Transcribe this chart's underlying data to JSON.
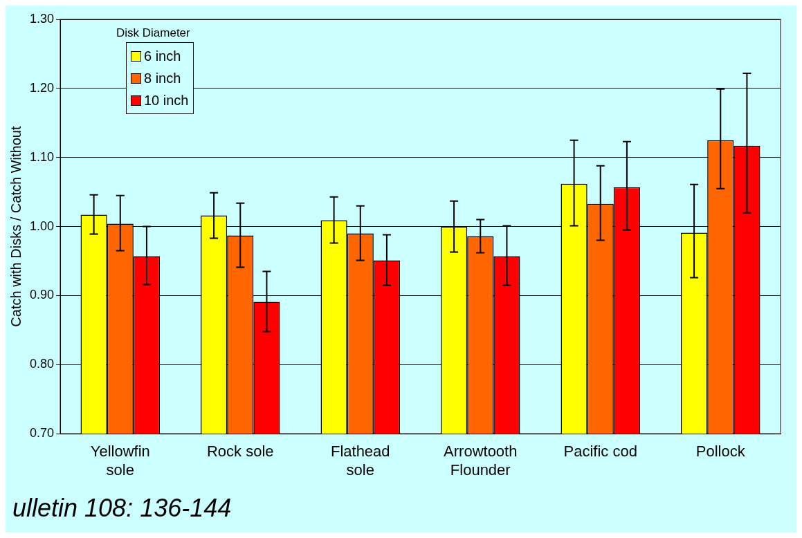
{
  "chart_data": {
    "type": "bar",
    "ylabel": "Catch with Disks / Catch Without",
    "legend_title": "Disk Diameter",
    "categories": [
      "Yellowfin sole",
      "Rock sole",
      "Flathead sole",
      "Arrowtooth Flounder",
      "Pacific cod",
      "Pollock"
    ],
    "series": [
      {
        "name": "6 inch",
        "color": "#ffff00",
        "values": [
          1.017,
          1.016,
          1.009,
          1.0,
          1.062,
          0.991
        ],
        "errors": [
          [
            0.989,
            1.046
          ],
          [
            0.983,
            1.049
          ],
          [
            0.976,
            1.043
          ],
          [
            0.963,
            1.037
          ],
          [
            1.001,
            1.125
          ],
          [
            0.926,
            1.061
          ]
        ]
      },
      {
        "name": "8 inch",
        "color": "#ff6600",
        "values": [
          1.004,
          0.987,
          0.99,
          0.986,
          1.033,
          1.125
        ],
        "errors": [
          [
            0.965,
            1.045
          ],
          [
            0.941,
            1.034
          ],
          [
            0.951,
            1.03
          ],
          [
            0.962,
            1.01
          ],
          [
            0.98,
            1.088
          ],
          [
            1.055,
            1.199
          ]
        ]
      },
      {
        "name": "10 inch",
        "color": "#ff0000",
        "values": [
          0.957,
          0.891,
          0.951,
          0.957,
          1.057,
          1.117
        ],
        "errors": [
          [
            0.916,
            1.0
          ],
          [
            0.848,
            0.935
          ],
          [
            0.915,
            0.988
          ],
          [
            0.915,
            1.001
          ],
          [
            0.995,
            1.123
          ],
          [
            1.02,
            1.222
          ]
        ]
      }
    ],
    "ylim": [
      0.7,
      1.3
    ],
    "yticks": [
      {
        "value": 0.7,
        "label": "0.70"
      },
      {
        "value": 0.8,
        "label": "0.80"
      },
      {
        "value": 0.9,
        "label": "0.90"
      },
      {
        "value": 1.0,
        "label": "1.00"
      },
      {
        "value": 1.1,
        "label": "1.10"
      },
      {
        "value": 1.2,
        "label": "1.20"
      },
      {
        "value": 1.3,
        "label": "1.30"
      }
    ],
    "grid": "y",
    "legend": "top left",
    "annotations": [
      "ulletin 108: 136-144"
    ]
  }
}
